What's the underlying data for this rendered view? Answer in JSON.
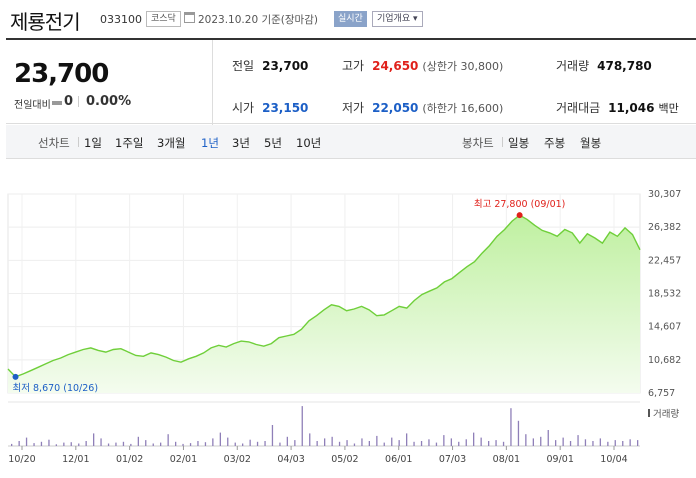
{
  "header": {
    "name": "제룡전기",
    "code": "033100",
    "market": "코스닥",
    "date": "2023.10.20 기준(장마감)",
    "realtime": "실시간",
    "company_info": "기업개요"
  },
  "quote": {
    "price": "23,700",
    "change_label": "전일대비",
    "change": "0",
    "change_pct": "0.00%",
    "prev_close": {
      "label": "전일",
      "value": "23,700"
    },
    "high": {
      "label": "고가",
      "value": "24,650",
      "sub": "(상한가 30,800)"
    },
    "volume": {
      "label": "거래량",
      "value": "478,780"
    },
    "open": {
      "label": "시가",
      "value": "23,150"
    },
    "low": {
      "label": "저가",
      "value": "22,050",
      "sub": "(하한가 16,600)"
    },
    "amount": {
      "label": "거래대금",
      "value": "11,046",
      "unit": "백만"
    }
  },
  "tabs": {
    "line_chart": "선차트",
    "periods": [
      "1일",
      "1주일",
      "3개월",
      "1년",
      "3년",
      "5년",
      "10년"
    ],
    "selected": "1년",
    "candle_chart": "봉차트",
    "candles": [
      "일봉",
      "주봉",
      "월봉"
    ]
  },
  "colors": {
    "up": "#e0211b",
    "down": "#1c5fc6",
    "line": "#6fcf3a"
  },
  "chart_data": {
    "type": "area",
    "y_ticks": [
      "30,307",
      "26,382",
      "22,457",
      "18,532",
      "14,607",
      "10,682",
      "6,757"
    ],
    "ylim": [
      6757,
      30307
    ],
    "x_ticks": [
      "10/20",
      "12/01",
      "01/02",
      "02/01",
      "03/02",
      "04/03",
      "05/02",
      "06/01",
      "07/03",
      "08/01",
      "09/01",
      "10/04"
    ],
    "max_label": "최고 27,800 (09/01)",
    "min_label": "최저 8,670 (10/26)",
    "volume_label": "거래량",
    "series": [
      {
        "values": [
          9600,
          8670,
          9000,
          9400,
          9800,
          10200,
          10600,
          10900,
          11300,
          11600,
          11900,
          12100,
          11800,
          11600,
          11900,
          12000,
          11600,
          11200,
          11100,
          11500,
          11300,
          11000,
          10600,
          10400,
          10800,
          11100,
          11500,
          12100,
          12400,
          12200,
          12600,
          12900,
          12800,
          12500,
          12300,
          12600,
          13300,
          13500,
          13700,
          14300,
          15300,
          15900,
          16600,
          17200,
          17000,
          16500,
          16700,
          17000,
          16600,
          15900,
          16000,
          16500,
          17000,
          16800,
          17700,
          18400,
          18800,
          19200,
          19900,
          20300,
          21000,
          21700,
          22300,
          23300,
          24200,
          25300,
          26100,
          27100,
          27800,
          27300,
          26600,
          26000,
          25700,
          25300,
          26100,
          25700,
          24500,
          25600,
          25100,
          24500,
          25800,
          25300,
          26300,
          25500,
          23700
        ]
      }
    ],
    "volume": [
      0.05,
      0.12,
      0.2,
      0.07,
      0.1,
      0.15,
      0.04,
      0.08,
      0.09,
      0.06,
      0.12,
      0.3,
      0.18,
      0.06,
      0.08,
      0.1,
      0.05,
      0.22,
      0.14,
      0.06,
      0.08,
      0.28,
      0.1,
      0.05,
      0.07,
      0.12,
      0.09,
      0.18,
      0.32,
      0.2,
      0.08,
      0.06,
      0.15,
      0.1,
      0.12,
      0.5,
      0.08,
      0.22,
      0.14,
      0.95,
      0.3,
      0.12,
      0.18,
      0.22,
      0.1,
      0.14,
      0.06,
      0.18,
      0.12,
      0.24,
      0.08,
      0.2,
      0.14,
      0.3,
      0.1,
      0.12,
      0.16,
      0.08,
      0.26,
      0.18,
      0.1,
      0.16,
      0.32,
      0.2,
      0.12,
      0.14,
      0.1,
      0.9,
      0.6,
      0.28,
      0.18,
      0.22,
      0.38,
      0.14,
      0.2,
      0.12,
      0.26,
      0.16,
      0.12,
      0.18,
      0.1,
      0.14,
      0.12,
      0.16,
      0.14
    ],
    "grid": true
  }
}
